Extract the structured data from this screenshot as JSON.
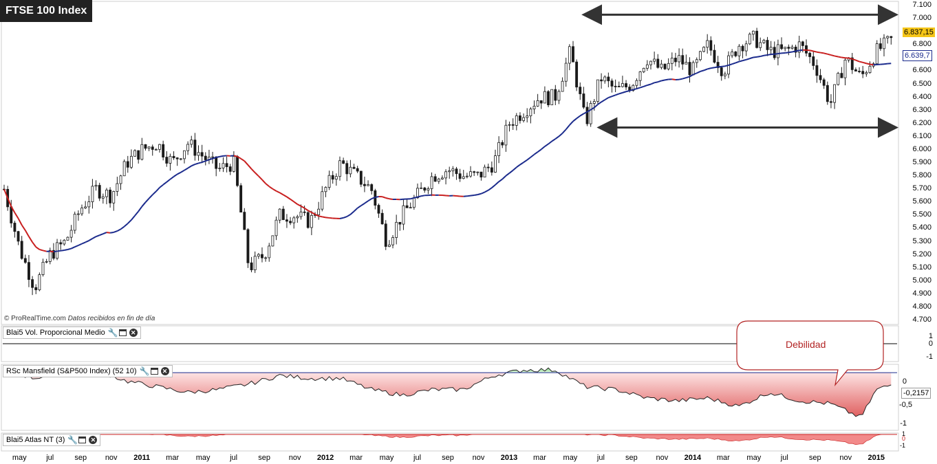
{
  "title": "FTSE 100 Index",
  "credit_brand": "© ProRealTime.com",
  "credit_note": "Datos recibidos en fin de día",
  "colors": {
    "background": "#ffffff",
    "bull_candle": "#ffffff",
    "bear_candle": "#1a1a1a",
    "ma_up": "#1a2a8c",
    "ma_down": "#c81e1e",
    "price_badge": "#f5c518",
    "rsc_positive": "#7fd67f",
    "rsc_negative": "#e06060",
    "callout_text": "#b22222"
  },
  "panels": {
    "vol": {
      "label": "Blai5 Vol. Proporcional Medio",
      "ticks": [
        "1",
        "0",
        "-1"
      ]
    },
    "rsc": {
      "label": "RSc Mansfield (S&P500 Index) (52 10)",
      "ticks": [
        "0",
        "-0,5",
        "-1"
      ],
      "current": "-0,2157"
    },
    "atlas": {
      "label": "Blai5 Atlas NT (3)",
      "ticks": [
        "1",
        "0",
        "-1"
      ]
    }
  },
  "callout": "Debilidad",
  "price_axis": [
    "7.100",
    "7.000",
    "6.900",
    "6.800",
    "6.700",
    "6.600",
    "6.500",
    "6.400",
    "6.300",
    "6.200",
    "6.100",
    "6.000",
    "5.900",
    "5.800",
    "5.700",
    "5.600",
    "5.500",
    "5.400",
    "5.300",
    "5.200",
    "5.100",
    "5.000",
    "4.900",
    "4.800",
    "4.700"
  ],
  "last_price": "6.837,15",
  "ma_value": "6.639,7",
  "x_axis": [
    {
      "label": "may",
      "year": false
    },
    {
      "label": "jul",
      "year": false
    },
    {
      "label": "sep",
      "year": false
    },
    {
      "label": "nov",
      "year": false
    },
    {
      "label": "2011",
      "year": true
    },
    {
      "label": "mar",
      "year": false
    },
    {
      "label": "may",
      "year": false
    },
    {
      "label": "jul",
      "year": false
    },
    {
      "label": "sep",
      "year": false
    },
    {
      "label": "nov",
      "year": false
    },
    {
      "label": "2012",
      "year": true
    },
    {
      "label": "mar",
      "year": false
    },
    {
      "label": "may",
      "year": false
    },
    {
      "label": "jul",
      "year": false
    },
    {
      "label": "sep",
      "year": false
    },
    {
      "label": "nov",
      "year": false
    },
    {
      "label": "2013",
      "year": true
    },
    {
      "label": "mar",
      "year": false
    },
    {
      "label": "may",
      "year": false
    },
    {
      "label": "jul",
      "year": false
    },
    {
      "label": "sep",
      "year": false
    },
    {
      "label": "nov",
      "year": false
    },
    {
      "label": "2014",
      "year": true
    },
    {
      "label": "mar",
      "year": false
    },
    {
      "label": "may",
      "year": false
    },
    {
      "label": "jul",
      "year": false
    },
    {
      "label": "sep",
      "year": false
    },
    {
      "label": "nov",
      "year": false
    },
    {
      "label": "2015",
      "year": true
    }
  ],
  "chart_data": {
    "type": "candlestick",
    "title": "FTSE 100 Index",
    "interval": "weekly",
    "ylim": [
      4700,
      7100
    ],
    "x_range": [
      "2010-04",
      "2015-02"
    ],
    "moving_average_last": 6639.7,
    "last_close": 6837.15,
    "close_path": [
      {
        "date": "2010-04",
        "close": 5700
      },
      {
        "date": "2010-05",
        "close": 5250
      },
      {
        "date": "2010-06",
        "close": 4950
      },
      {
        "date": "2010-07",
        "close": 5200
      },
      {
        "date": "2010-08",
        "close": 5300
      },
      {
        "date": "2010-09",
        "close": 5550
      },
      {
        "date": "2010-10",
        "close": 5700
      },
      {
        "date": "2010-11",
        "close": 5650
      },
      {
        "date": "2010-12",
        "close": 5900
      },
      {
        "date": "2011-01",
        "close": 6000
      },
      {
        "date": "2011-02",
        "close": 6050
      },
      {
        "date": "2011-03",
        "close": 5900
      },
      {
        "date": "2011-04",
        "close": 6050
      },
      {
        "date": "2011-05",
        "close": 5950
      },
      {
        "date": "2011-06",
        "close": 5850
      },
      {
        "date": "2011-07",
        "close": 5900
      },
      {
        "date": "2011-08",
        "close": 5100
      },
      {
        "date": "2011-09",
        "close": 5200
      },
      {
        "date": "2011-10",
        "close": 5500
      },
      {
        "date": "2011-11",
        "close": 5500
      },
      {
        "date": "2011-12",
        "close": 5450
      },
      {
        "date": "2012-01",
        "close": 5700
      },
      {
        "date": "2012-02",
        "close": 5900
      },
      {
        "date": "2012-03",
        "close": 5800
      },
      {
        "date": "2012-04",
        "close": 5700
      },
      {
        "date": "2012-05",
        "close": 5300
      },
      {
        "date": "2012-06",
        "close": 5500
      },
      {
        "date": "2012-07",
        "close": 5650
      },
      {
        "date": "2012-08",
        "close": 5800
      },
      {
        "date": "2012-09",
        "close": 5850
      },
      {
        "date": "2012-10",
        "close": 5800
      },
      {
        "date": "2012-11",
        "close": 5800
      },
      {
        "date": "2012-12",
        "close": 5900
      },
      {
        "date": "2013-01",
        "close": 6200
      },
      {
        "date": "2013-02",
        "close": 6300
      },
      {
        "date": "2013-03",
        "close": 6400
      },
      {
        "date": "2013-04",
        "close": 6400
      },
      {
        "date": "2013-05",
        "close": 6750
      },
      {
        "date": "2013-06",
        "close": 6200
      },
      {
        "date": "2013-07",
        "close": 6550
      },
      {
        "date": "2013-08",
        "close": 6450
      },
      {
        "date": "2013-09",
        "close": 6500
      },
      {
        "date": "2013-10",
        "close": 6700
      },
      {
        "date": "2013-11",
        "close": 6600
      },
      {
        "date": "2013-12",
        "close": 6700
      },
      {
        "date": "2014-01",
        "close": 6600
      },
      {
        "date": "2014-02",
        "close": 6800
      },
      {
        "date": "2014-03",
        "close": 6600
      },
      {
        "date": "2014-04",
        "close": 6800
      },
      {
        "date": "2014-05",
        "close": 6850
      },
      {
        "date": "2014-06",
        "close": 6750
      },
      {
        "date": "2014-07",
        "close": 6750
      },
      {
        "date": "2014-08",
        "close": 6800
      },
      {
        "date": "2014-09",
        "close": 6650
      },
      {
        "date": "2014-10",
        "close": 6350
      },
      {
        "date": "2014-11",
        "close": 6700
      },
      {
        "date": "2014-12",
        "close": 6550
      },
      {
        "date": "2015-01",
        "close": 6750
      },
      {
        "date": "2015-02",
        "close": 6837
      }
    ],
    "annotations": [
      {
        "type": "double-arrow",
        "level": 7030
      },
      {
        "type": "double-arrow",
        "level": 6170
      },
      {
        "type": "callout",
        "text": "Debilidad"
      }
    ],
    "rsc_mansfield": {
      "name": "RSc Mansfield (S&P500 Index) (52 10)",
      "current": -0.2157,
      "ylim": [
        -1,
        0.1
      ],
      "path": [
        {
          "date": "2010-04",
          "value": 0.05
        },
        {
          "date": "2010-06",
          "value": -0.1
        },
        {
          "date": "2010-08",
          "value": 0.05
        },
        {
          "date": "2010-10",
          "value": 0.05
        },
        {
          "date": "2010-12",
          "value": -0.15
        },
        {
          "date": "2011-02",
          "value": -0.25
        },
        {
          "date": "2011-04",
          "value": -0.35
        },
        {
          "date": "2011-06",
          "value": -0.3
        },
        {
          "date": "2011-08",
          "value": -0.2
        },
        {
          "date": "2011-10",
          "value": -0.05
        },
        {
          "date": "2011-12",
          "value": -0.1
        },
        {
          "date": "2012-02",
          "value": -0.1
        },
        {
          "date": "2012-04",
          "value": -0.3
        },
        {
          "date": "2012-06",
          "value": -0.4
        },
        {
          "date": "2012-08",
          "value": -0.3
        },
        {
          "date": "2012-10",
          "value": -0.3
        },
        {
          "date": "2012-12",
          "value": -0.05
        },
        {
          "date": "2013-02",
          "value": 0.05
        },
        {
          "date": "2013-04",
          "value": 0.05
        },
        {
          "date": "2013-06",
          "value": -0.25
        },
        {
          "date": "2013-08",
          "value": -0.3
        },
        {
          "date": "2013-10",
          "value": -0.45
        },
        {
          "date": "2013-12",
          "value": -0.5
        },
        {
          "date": "2014-02",
          "value": -0.45
        },
        {
          "date": "2014-04",
          "value": -0.6
        },
        {
          "date": "2014-06",
          "value": -0.35
        },
        {
          "date": "2014-08",
          "value": -0.5
        },
        {
          "date": "2014-10",
          "value": -0.55
        },
        {
          "date": "2014-12",
          "value": -0.8
        },
        {
          "date": "2015-01",
          "value": -0.3
        },
        {
          "date": "2015-02",
          "value": -0.2157
        }
      ]
    }
  }
}
